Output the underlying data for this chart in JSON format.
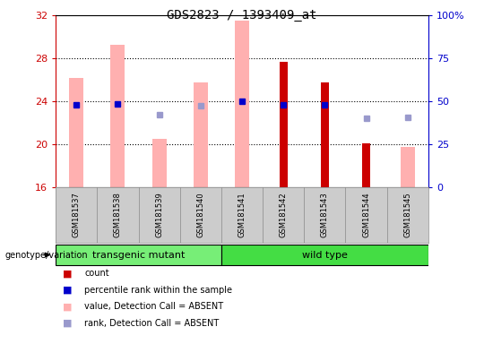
{
  "title": "GDS2823 / 1393409_at",
  "samples": [
    "GSM181537",
    "GSM181538",
    "GSM181539",
    "GSM181540",
    "GSM181541",
    "GSM181542",
    "GSM181543",
    "GSM181544",
    "GSM181545"
  ],
  "ylim_left": [
    16,
    32
  ],
  "ylim_right": [
    0,
    100
  ],
  "yticks_left": [
    16,
    20,
    24,
    28,
    32
  ],
  "yticks_right": [
    0,
    25,
    50,
    75,
    100
  ],
  "ytick_labels_right": [
    "0",
    "25",
    "50",
    "75",
    "100%"
  ],
  "pink_bar_values": [
    26.2,
    29.3,
    20.5,
    25.8,
    31.5,
    null,
    null,
    null,
    19.8
  ],
  "pink_bar_baseline": 16,
  "red_bar_values": [
    null,
    null,
    null,
    null,
    null,
    27.7,
    25.8,
    20.1,
    null
  ],
  "red_bar_baseline": 16,
  "blue_square_values": [
    23.7,
    23.8,
    null,
    null,
    24.0,
    23.7,
    23.7,
    null,
    null
  ],
  "blue_square_color": "#0000cc",
  "light_blue_square_values": [
    null,
    null,
    22.8,
    23.6,
    null,
    null,
    null,
    22.4,
    22.5
  ],
  "light_blue_square_color": "#9999cc",
  "group_labels": [
    "transgenic mutant",
    "wild type"
  ],
  "group_sample_counts": [
    4,
    5
  ],
  "group_colors": [
    "#77ee77",
    "#44dd44"
  ],
  "genotype_label": "genotype/variation",
  "legend_colors": [
    "#cc0000",
    "#0000cc",
    "#ffb0b0",
    "#9999cc"
  ],
  "legend_labels": [
    "count",
    "percentile rank within the sample",
    "value, Detection Call = ABSENT",
    "rank, Detection Call = ABSENT"
  ],
  "left_axis_color": "#cc0000",
  "right_axis_color": "#0000cc",
  "bar_width": 0.35
}
